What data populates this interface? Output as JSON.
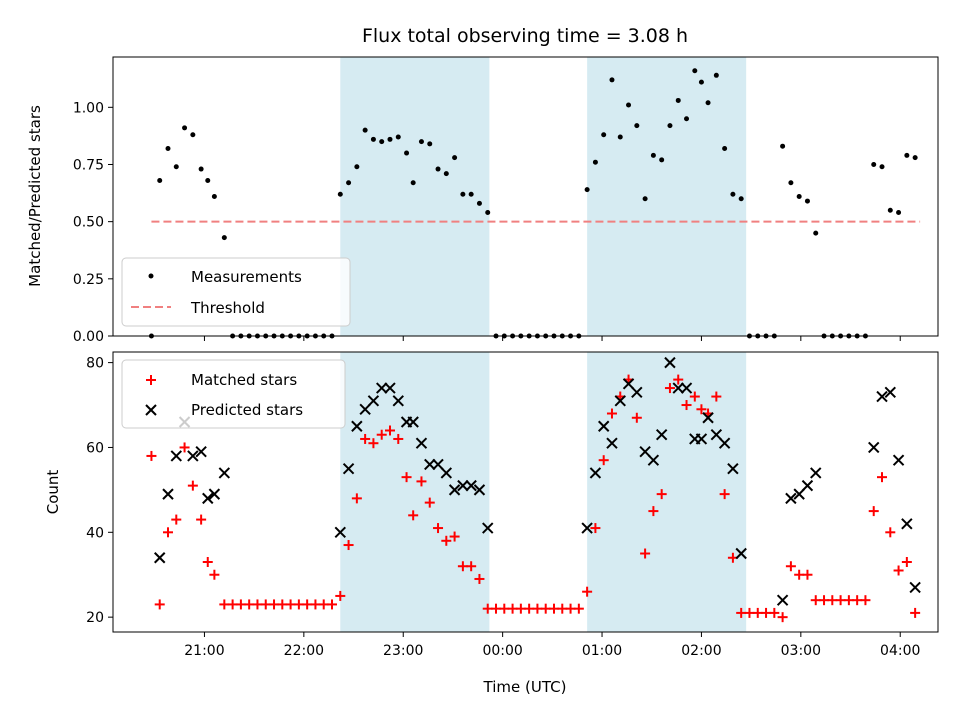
{
  "chart_data": [
    {
      "type": "scatter",
      "title": "Flux total observing time = 3.08 h",
      "xlabel": "",
      "ylabel": "Matched/Predicted stars",
      "x_unit": "time (UTC), hours; values >= 24 are after midnight",
      "xlim": [
        20.08,
        4.38
      ],
      "ylim": [
        0.0,
        1.22
      ],
      "y_ticks": [
        "0.00",
        "0.25",
        "0.50",
        "0.75",
        "1.00"
      ],
      "x_ticks": [
        "21:00",
        "22:00",
        "23:00",
        "00:00",
        "01:00",
        "02:00",
        "03:00",
        "04:00"
      ],
      "shaded_intervals": [
        [
          "22:22",
          "23:52"
        ],
        [
          "00:51",
          "02:27"
        ]
      ],
      "legend": {
        "position": "lower-left",
        "entries": [
          "Measurements",
          "Threshold"
        ]
      },
      "threshold": {
        "name": "Threshold",
        "value": 0.5,
        "x_range": [
          "20:28",
          "04:12"
        ],
        "color": "#f08080"
      },
      "series": [
        {
          "name": "Measurements",
          "color": "#000000",
          "points": [
            [
              "20:28",
              0.0
            ],
            [
              "20:33",
              0.68
            ],
            [
              "20:38",
              0.82
            ],
            [
              "20:43",
              0.74
            ],
            [
              "20:48",
              0.91
            ],
            [
              "20:53",
              0.88
            ],
            [
              "20:58",
              0.73
            ],
            [
              "21:02",
              0.68
            ],
            [
              "21:06",
              0.61
            ],
            [
              "21:12",
              0.43
            ],
            [
              "21:17",
              0.0
            ],
            [
              "21:22",
              0.0
            ],
            [
              "21:27",
              0.0
            ],
            [
              "21:32",
              0.0
            ],
            [
              "21:37",
              0.0
            ],
            [
              "21:42",
              0.0
            ],
            [
              "21:47",
              0.0
            ],
            [
              "21:52",
              0.0
            ],
            [
              "21:57",
              0.0
            ],
            [
              "22:02",
              0.0
            ],
            [
              "22:07",
              0.0
            ],
            [
              "22:12",
              0.0
            ],
            [
              "22:17",
              0.0
            ],
            [
              "22:22",
              0.62
            ],
            [
              "22:27",
              0.67
            ],
            [
              "22:32",
              0.74
            ],
            [
              "22:37",
              0.9
            ],
            [
              "22:42",
              0.86
            ],
            [
              "22:47",
              0.85
            ],
            [
              "22:52",
              0.86
            ],
            [
              "22:57",
              0.87
            ],
            [
              "23:02",
              0.8
            ],
            [
              "23:06",
              0.67
            ],
            [
              "23:11",
              0.85
            ],
            [
              "23:16",
              0.84
            ],
            [
              "23:21",
              0.73
            ],
            [
              "23:26",
              0.71
            ],
            [
              "23:31",
              0.78
            ],
            [
              "23:36",
              0.62
            ],
            [
              "23:41",
              0.62
            ],
            [
              "23:46",
              0.58
            ],
            [
              "23:51",
              0.54
            ],
            [
              "23:56",
              0.0
            ],
            [
              "00:01",
              0.0
            ],
            [
              "00:06",
              0.0
            ],
            [
              "00:11",
              0.0
            ],
            [
              "00:16",
              0.0
            ],
            [
              "00:21",
              0.0
            ],
            [
              "00:26",
              0.0
            ],
            [
              "00:31",
              0.0
            ],
            [
              "00:36",
              0.0
            ],
            [
              "00:41",
              0.0
            ],
            [
              "00:46",
              0.0
            ],
            [
              "00:51",
              0.64
            ],
            [
              "00:56",
              0.76
            ],
            [
              "01:01",
              0.88
            ],
            [
              "01:06",
              1.12
            ],
            [
              "01:11",
              0.87
            ],
            [
              "01:16",
              1.01
            ],
            [
              "01:21",
              0.92
            ],
            [
              "01:26",
              0.6
            ],
            [
              "01:31",
              0.79
            ],
            [
              "01:36",
              0.77
            ],
            [
              "01:41",
              0.92
            ],
            [
              "01:46",
              1.03
            ],
            [
              "01:51",
              0.95
            ],
            [
              "01:56",
              1.16
            ],
            [
              "02:00",
              1.11
            ],
            [
              "02:04",
              1.02
            ],
            [
              "02:09",
              1.14
            ],
            [
              "02:14",
              0.82
            ],
            [
              "02:19",
              0.62
            ],
            [
              "02:24",
              0.6
            ],
            [
              "02:29",
              0.0
            ],
            [
              "02:34",
              0.0
            ],
            [
              "02:39",
              0.0
            ],
            [
              "02:44",
              0.0
            ],
            [
              "02:49",
              0.83
            ],
            [
              "02:54",
              0.67
            ],
            [
              "02:59",
              0.61
            ],
            [
              "03:04",
              0.59
            ],
            [
              "03:09",
              0.45
            ],
            [
              "03:14",
              0.0
            ],
            [
              "03:19",
              0.0
            ],
            [
              "03:24",
              0.0
            ],
            [
              "03:29",
              0.0
            ],
            [
              "03:34",
              0.0
            ],
            [
              "03:39",
              0.0
            ],
            [
              "03:44",
              0.75
            ],
            [
              "03:49",
              0.74
            ],
            [
              "03:54",
              0.55
            ],
            [
              "03:59",
              0.54
            ],
            [
              "04:04",
              0.79
            ],
            [
              "04:09",
              0.78
            ]
          ]
        }
      ]
    },
    {
      "type": "scatter",
      "title": "",
      "xlabel": "Time (UTC)",
      "ylabel": "Count",
      "x_unit": "time (UTC), hours; values >= 24 are after midnight",
      "xlim": [
        20.08,
        4.38
      ],
      "ylim": [
        16.5,
        82.5
      ],
      "y_ticks": [
        "20",
        "40",
        "60",
        "80"
      ],
      "x_ticks": [
        "21:00",
        "22:00",
        "23:00",
        "00:00",
        "01:00",
        "02:00",
        "03:00",
        "04:00"
      ],
      "shaded_intervals": [
        [
          "22:22",
          "23:52"
        ],
        [
          "00:51",
          "02:27"
        ]
      ],
      "legend": {
        "position": "upper-left",
        "entries": [
          "Matched stars",
          "Predicted stars"
        ]
      },
      "series": [
        {
          "name": "Matched stars",
          "marker": "plus",
          "color": "#ff0000",
          "points": [
            [
              "20:28",
              58
            ],
            [
              "20:33",
              23
            ],
            [
              "20:38",
              40
            ],
            [
              "20:43",
              43
            ],
            [
              "20:48",
              60
            ],
            [
              "20:53",
              51
            ],
            [
              "20:58",
              43
            ],
            [
              "21:02",
              33
            ],
            [
              "21:06",
              30
            ],
            [
              "21:12",
              23
            ],
            [
              "21:17",
              23
            ],
            [
              "21:22",
              23
            ],
            [
              "21:27",
              23
            ],
            [
              "21:32",
              23
            ],
            [
              "21:37",
              23
            ],
            [
              "21:42",
              23
            ],
            [
              "21:47",
              23
            ],
            [
              "21:52",
              23
            ],
            [
              "21:57",
              23
            ],
            [
              "22:02",
              23
            ],
            [
              "22:07",
              23
            ],
            [
              "22:12",
              23
            ],
            [
              "22:17",
              23
            ],
            [
              "22:22",
              25
            ],
            [
              "22:27",
              37
            ],
            [
              "22:32",
              48
            ],
            [
              "22:37",
              62
            ],
            [
              "22:42",
              61
            ],
            [
              "22:47",
              63
            ],
            [
              "22:52",
              64
            ],
            [
              "22:57",
              62
            ],
            [
              "23:02",
              53
            ],
            [
              "23:06",
              44
            ],
            [
              "23:11",
              52
            ],
            [
              "23:16",
              47
            ],
            [
              "23:21",
              41
            ],
            [
              "23:26",
              38
            ],
            [
              "23:31",
              39
            ],
            [
              "23:36",
              32
            ],
            [
              "23:41",
              32
            ],
            [
              "23:46",
              29
            ],
            [
              "23:51",
              22
            ],
            [
              "23:56",
              22
            ],
            [
              "00:01",
              22
            ],
            [
              "00:06",
              22
            ],
            [
              "00:11",
              22
            ],
            [
              "00:16",
              22
            ],
            [
              "00:21",
              22
            ],
            [
              "00:26",
              22
            ],
            [
              "00:31",
              22
            ],
            [
              "00:36",
              22
            ],
            [
              "00:41",
              22
            ],
            [
              "00:46",
              22
            ],
            [
              "00:51",
              26
            ],
            [
              "00:56",
              41
            ],
            [
              "01:01",
              57
            ],
            [
              "01:06",
              68
            ],
            [
              "01:11",
              72
            ],
            [
              "01:16",
              76
            ],
            [
              "01:21",
              67
            ],
            [
              "01:26",
              35
            ],
            [
              "01:31",
              45
            ],
            [
              "01:36",
              49
            ],
            [
              "01:41",
              74
            ],
            [
              "01:46",
              76
            ],
            [
              "01:51",
              70
            ],
            [
              "01:56",
              72
            ],
            [
              "02:00",
              69
            ],
            [
              "02:04",
              68
            ],
            [
              "02:09",
              72
            ],
            [
              "02:14",
              49
            ],
            [
              "02:19",
              34
            ],
            [
              "02:24",
              21
            ],
            [
              "02:29",
              21
            ],
            [
              "02:34",
              21
            ],
            [
              "02:39",
              21
            ],
            [
              "02:44",
              21
            ],
            [
              "02:49",
              20
            ],
            [
              "02:54",
              32
            ],
            [
              "02:59",
              30
            ],
            [
              "03:04",
              30
            ],
            [
              "03:09",
              24
            ],
            [
              "03:14",
              24
            ],
            [
              "03:19",
              24
            ],
            [
              "03:24",
              24
            ],
            [
              "03:29",
              24
            ],
            [
              "03:34",
              24
            ],
            [
              "03:39",
              24
            ],
            [
              "03:44",
              45
            ],
            [
              "03:49",
              53
            ],
            [
              "03:54",
              40
            ],
            [
              "03:59",
              31
            ],
            [
              "04:04",
              33
            ],
            [
              "04:09",
              21
            ]
          ]
        },
        {
          "name": "Predicted stars",
          "marker": "x",
          "color": "#000000",
          "points": [
            [
              "20:33",
              34
            ],
            [
              "20:38",
              49
            ],
            [
              "20:43",
              58
            ],
            [
              "20:48",
              66
            ],
            [
              "20:53",
              58
            ],
            [
              "20:58",
              59
            ],
            [
              "21:02",
              48
            ],
            [
              "21:06",
              49
            ],
            [
              "21:12",
              54
            ],
            [
              "22:22",
              40
            ],
            [
              "22:27",
              55
            ],
            [
              "22:32",
              65
            ],
            [
              "22:37",
              69
            ],
            [
              "22:42",
              71
            ],
            [
              "22:47",
              74
            ],
            [
              "22:52",
              74
            ],
            [
              "22:57",
              71
            ],
            [
              "23:02",
              66
            ],
            [
              "23:06",
              66
            ],
            [
              "23:11",
              61
            ],
            [
              "23:16",
              56
            ],
            [
              "23:21",
              56
            ],
            [
              "23:26",
              54
            ],
            [
              "23:31",
              50
            ],
            [
              "23:36",
              51
            ],
            [
              "23:41",
              51
            ],
            [
              "23:46",
              50
            ],
            [
              "23:51",
              41
            ],
            [
              "00:51",
              41
            ],
            [
              "00:56",
              54
            ],
            [
              "01:01",
              65
            ],
            [
              "01:06",
              61
            ],
            [
              "01:11",
              71
            ],
            [
              "01:16",
              75
            ],
            [
              "01:21",
              73
            ],
            [
              "01:26",
              59
            ],
            [
              "01:31",
              57
            ],
            [
              "01:36",
              63
            ],
            [
              "01:41",
              80
            ],
            [
              "01:46",
              74
            ],
            [
              "01:51",
              74
            ],
            [
              "01:56",
              62
            ],
            [
              "02:00",
              62
            ],
            [
              "02:04",
              67
            ],
            [
              "02:09",
              63
            ],
            [
              "02:14",
              61
            ],
            [
              "02:19",
              55
            ],
            [
              "02:24",
              35
            ],
            [
              "02:49",
              24
            ],
            [
              "02:54",
              48
            ],
            [
              "02:59",
              49
            ],
            [
              "03:04",
              51
            ],
            [
              "03:09",
              54
            ],
            [
              "03:44",
              60
            ],
            [
              "03:49",
              72
            ],
            [
              "03:54",
              73
            ],
            [
              "03:59",
              57
            ],
            [
              "04:04",
              42
            ],
            [
              "04:09",
              27
            ]
          ]
        }
      ]
    }
  ]
}
